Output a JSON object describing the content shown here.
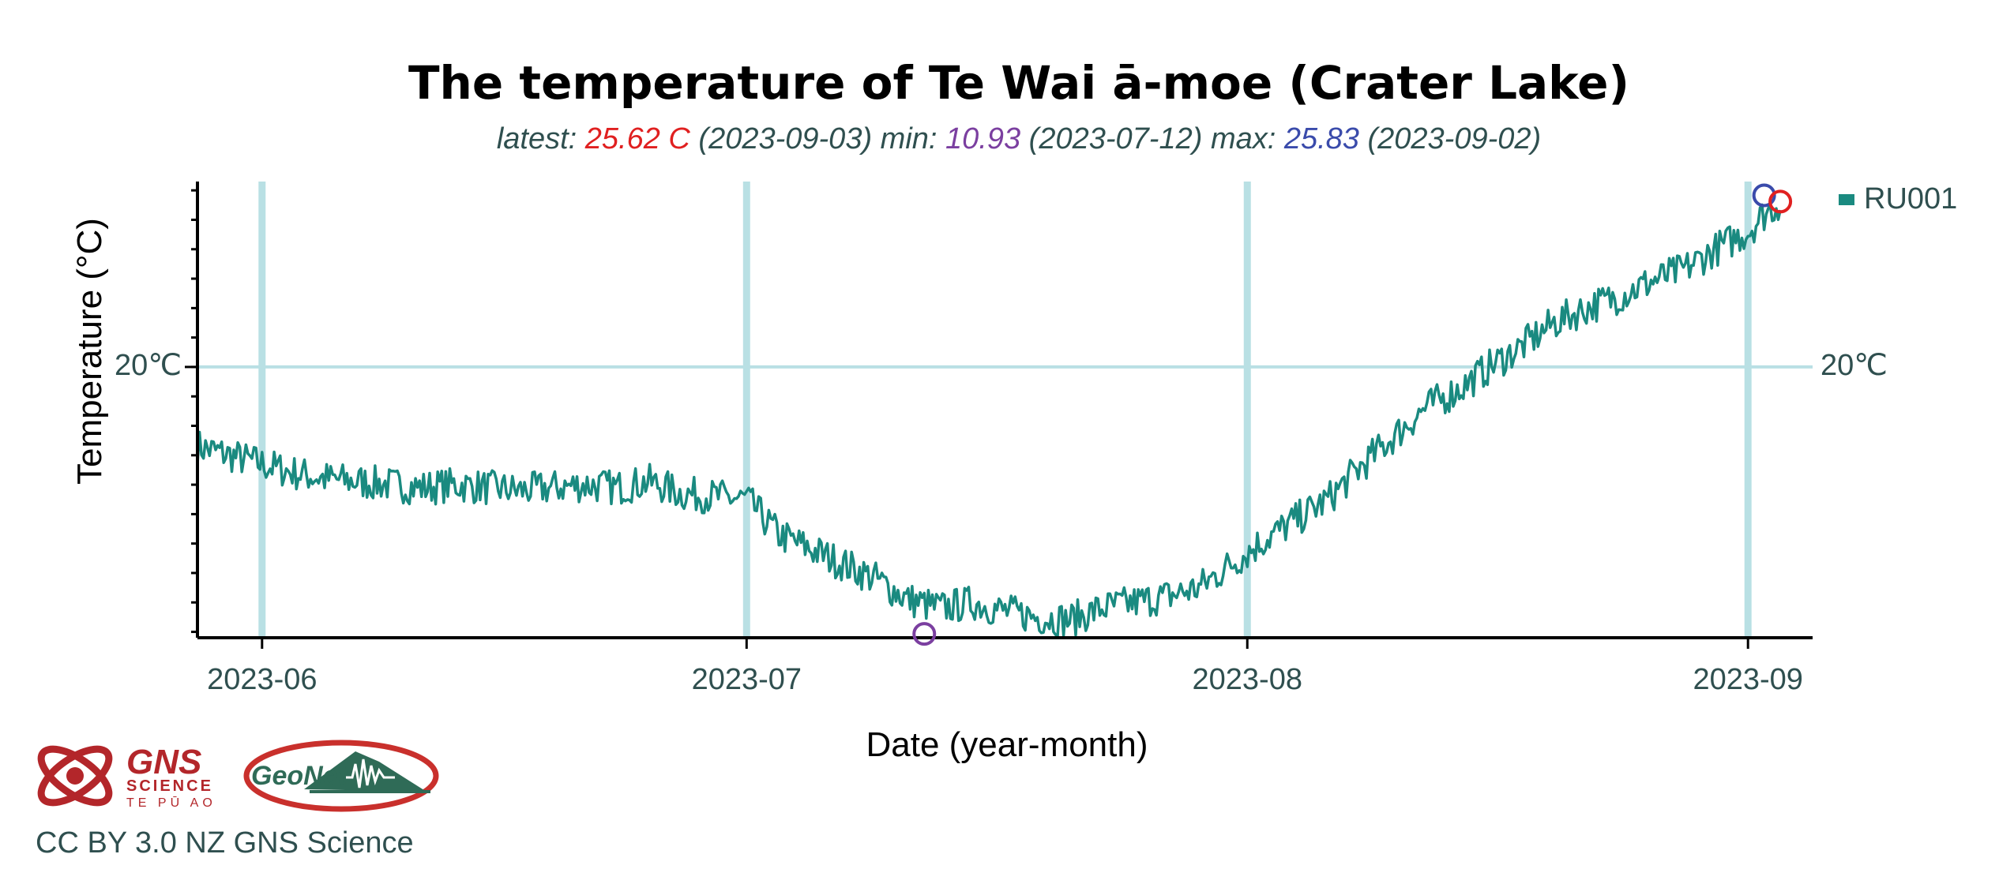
{
  "chart_data": {
    "type": "line",
    "title": "The temperature of Te Wai ā-moe (Crater Lake)",
    "subtitle": {
      "latest_label": "latest: ",
      "latest_value": "25.62 C",
      "latest_date": " (2023-09-03) ",
      "min_label": "min: ",
      "min_value": "10.93",
      "min_date": " (2023-07-12) ",
      "max_label": "max: ",
      "max_value": "25.83",
      "max_date": " (2023-09-02)"
    },
    "xlabel": "Date (year-month)",
    "ylabel": "Temperature (°C)",
    "x_ticks": [
      "2023-06",
      "2023-07",
      "2023-08",
      "2023-09"
    ],
    "x_tick_dates": [
      "2023-06-01",
      "2023-07-01",
      "2023-08-01",
      "2023-09-01"
    ],
    "xlim": [
      "2023-05-28",
      "2023-09-05"
    ],
    "y_ticks": [
      20
    ],
    "y_tick_labels": [
      "20℃"
    ],
    "ylim": [
      10.8,
      26.3
    ],
    "grid": true,
    "legend_position": "right",
    "series": [
      {
        "name": "RU001",
        "color": "#1a8a80",
        "points": [
          [
            "2023-05-28",
            17.3
          ],
          [
            "2023-05-30",
            17.0
          ],
          [
            "2023-06-01",
            16.7
          ],
          [
            "2023-06-03",
            16.4
          ],
          [
            "2023-06-05",
            16.2
          ],
          [
            "2023-06-07",
            16.1
          ],
          [
            "2023-06-09",
            16.0
          ],
          [
            "2023-06-11",
            15.9
          ],
          [
            "2023-06-13",
            16.0
          ],
          [
            "2023-06-15",
            15.9
          ],
          [
            "2023-06-17",
            15.8
          ],
          [
            "2023-06-19",
            15.9
          ],
          [
            "2023-06-21",
            16.0
          ],
          [
            "2023-06-23",
            15.9
          ],
          [
            "2023-06-25",
            16.1
          ],
          [
            "2023-06-27",
            15.7
          ],
          [
            "2023-06-29",
            15.6
          ],
          [
            "2023-07-01",
            15.5
          ],
          [
            "2023-07-03",
            14.3
          ],
          [
            "2023-07-05",
            13.8
          ],
          [
            "2023-07-07",
            13.3
          ],
          [
            "2023-07-09",
            12.8
          ],
          [
            "2023-07-11",
            12.1
          ],
          [
            "2023-07-13",
            11.8
          ],
          [
            "2023-07-15",
            12.0
          ],
          [
            "2023-07-17",
            11.7
          ],
          [
            "2023-07-19",
            11.5
          ],
          [
            "2023-07-21",
            11.4
          ],
          [
            "2023-07-23",
            11.8
          ],
          [
            "2023-07-25",
            12.0
          ],
          [
            "2023-07-27",
            12.2
          ],
          [
            "2023-07-29",
            12.5
          ],
          [
            "2023-07-31",
            13.3
          ],
          [
            "2023-08-02",
            14.1
          ],
          [
            "2023-08-04",
            14.8
          ],
          [
            "2023-08-06",
            15.5
          ],
          [
            "2023-08-08",
            16.6
          ],
          [
            "2023-08-10",
            17.6
          ],
          [
            "2023-08-12",
            18.6
          ],
          [
            "2023-08-14",
            19.2
          ],
          [
            "2023-08-16",
            20.0
          ],
          [
            "2023-08-18",
            20.7
          ],
          [
            "2023-08-20",
            21.5
          ],
          [
            "2023-08-22",
            22.0
          ],
          [
            "2023-08-24",
            22.4
          ],
          [
            "2023-08-26",
            22.9
          ],
          [
            "2023-08-28",
            23.3
          ],
          [
            "2023-08-30",
            24.0
          ],
          [
            "2023-09-01",
            24.6
          ],
          [
            "2023-09-02",
            25.2
          ],
          [
            "2023-09-03",
            25.6
          ]
        ]
      }
    ],
    "markers": [
      {
        "kind": "min",
        "date": "2023-07-12",
        "value": 10.93,
        "color": "#7b3fa0"
      },
      {
        "kind": "max",
        "date": "2023-09-02",
        "value": 25.83,
        "color": "#3a4bab"
      },
      {
        "kind": "latest",
        "date": "2023-09-03",
        "value": 25.62,
        "color": "#e02020"
      }
    ]
  },
  "colors": {
    "series": "#1a8a80",
    "grid": "#b9e0e4",
    "latest": "#e02020",
    "min": "#7b3fa0",
    "max": "#3a4bab",
    "text": "#2f4f4f",
    "logo_red": "#b3262a",
    "logo_green": "#2f6b57"
  },
  "logos": {
    "gns": {
      "main": "GNS",
      "sub": "SCIENCE",
      "maori": "TE PŪ AO"
    },
    "geonet": {
      "text": "GeoNet"
    }
  },
  "credit": "CC BY 3.0 NZ GNS Science"
}
